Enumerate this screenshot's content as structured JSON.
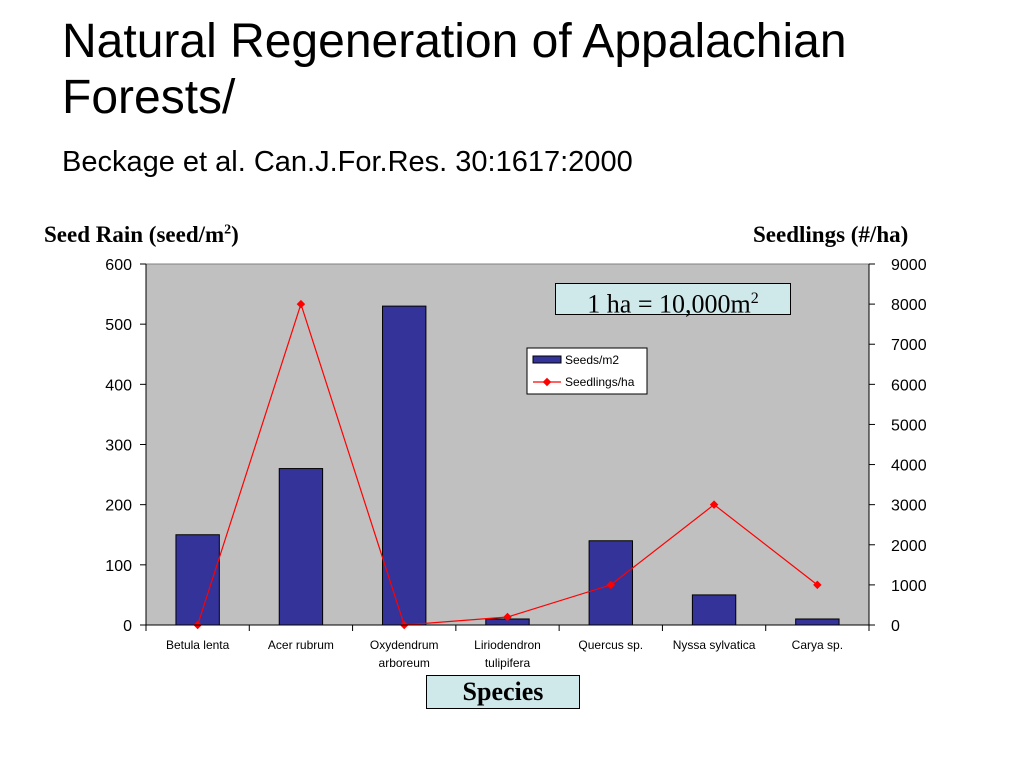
{
  "title": "Natural Regeneration of Appalachian Forests/",
  "subtitle": "Beckage et al. Can.J.For.Res. 30:1617:2000",
  "note": {
    "text": "1 ha = 10,000m",
    "sup": "2"
  },
  "chart_data": {
    "type": "bar+line",
    "categories": [
      [
        "Betula lenta"
      ],
      [
        "Acer rubrum"
      ],
      [
        "Oxydendrum",
        "arboreum"
      ],
      [
        "Liriodendron",
        "tulipifera"
      ],
      [
        "Quercus sp."
      ],
      [
        "Nyssa sylvatica"
      ],
      [
        "Carya sp."
      ]
    ],
    "series": [
      {
        "name": "Seeds/m2",
        "type": "bar",
        "axis": "left",
        "color": "#333399",
        "values": [
          150,
          260,
          530,
          10,
          140,
          50,
          10
        ]
      },
      {
        "name": "Seedlings/ha",
        "type": "line",
        "axis": "right",
        "color": "#ff0000",
        "values": [
          0,
          8000,
          0,
          200,
          1000,
          3000,
          1000
        ]
      }
    ],
    "ylabel_left": {
      "text": "Seed Rain (seed/m",
      "sup": "2",
      "tail": ")"
    },
    "ylabel_right": "Seedlings (#/ha)",
    "xlabel": "Species",
    "ylim_left": [
      0,
      600
    ],
    "yticks_left": [
      0,
      100,
      200,
      300,
      400,
      500,
      600
    ],
    "ylim_right": [
      0,
      9000
    ],
    "yticks_right": [
      0,
      1000,
      2000,
      3000,
      4000,
      5000,
      6000,
      7000,
      8000,
      9000
    ],
    "plot_background": "#c0c0c0",
    "legend_position": "upper-center"
  }
}
